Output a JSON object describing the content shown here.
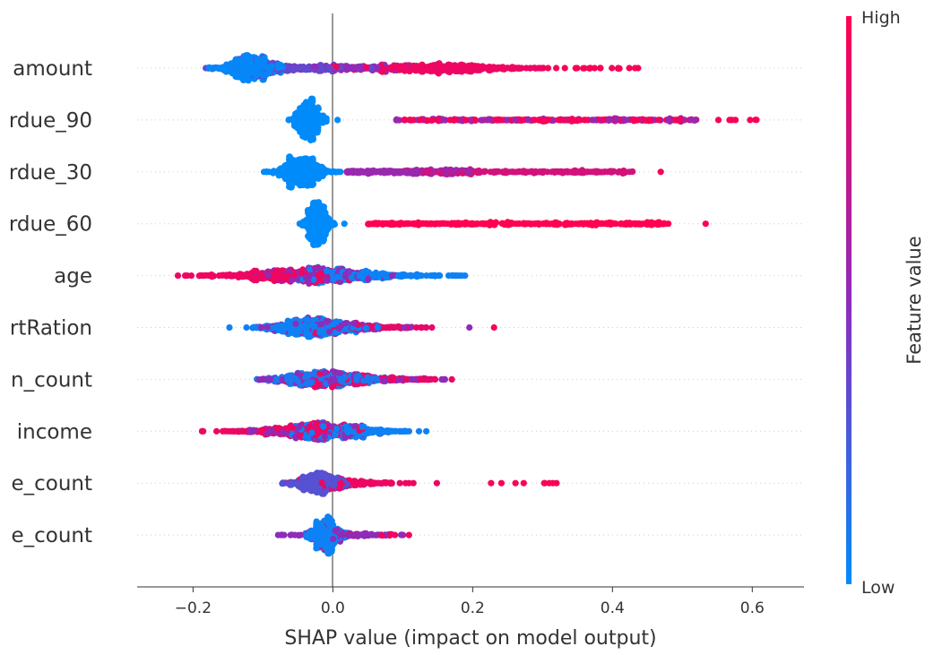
{
  "chart_data": {
    "type": "scatter",
    "subtype": "beeswarm",
    "xlabel": "SHAP value (impact on model output)",
    "xlim": [
      -0.28,
      0.674
    ],
    "xticks": [
      -0.2,
      0.0,
      0.2,
      0.4,
      0.6
    ],
    "xtick_labels": [
      "−0.2",
      "0.0",
      "0.2",
      "0.4",
      "0.6"
    ],
    "grid": false,
    "zero_line": true,
    "colorbar": {
      "label": "Feature value",
      "high_label": "High",
      "low_label": "Low",
      "low_color": "#008bfb",
      "mid_color": "#8e2cb9",
      "high_color": "#ff0052",
      "placement": "right"
    },
    "features": [
      {
        "label": "amount",
        "components": [
          {
            "mean": -0.12,
            "sd": 0.022,
            "lo": -0.23,
            "hi": -0.05,
            "n": 520,
            "value": 0.02
          },
          {
            "mean": -0.06,
            "sd": 0.05,
            "lo": -0.2,
            "hi": 0.06,
            "n": 220,
            "value": 0.35
          },
          {
            "mean": 0.03,
            "sd": 0.05,
            "lo": -0.08,
            "hi": 0.12,
            "n": 120,
            "value": 0.5
          },
          {
            "mean": 0.15,
            "sd": 0.065,
            "lo": 0.0,
            "hi": 0.3,
            "n": 480,
            "value": 0.92
          },
          {
            "mean": null,
            "sd": null,
            "lo": 0.3,
            "hi": 0.44,
            "n": 22,
            "value": 0.97
          }
        ]
      },
      {
        "label": "rdue_90",
        "components": [
          {
            "mean": -0.035,
            "sd": 0.011,
            "lo": -0.1,
            "hi": -0.005,
            "n": 520,
            "value": 0.0
          },
          {
            "mean": null,
            "sd": null,
            "lo": 0.005,
            "hi": 0.015,
            "n": 1,
            "value": 0.0
          },
          {
            "mean": null,
            "sd": null,
            "lo": 0.085,
            "hi": 0.52,
            "n": 160,
            "value": 0.55
          },
          {
            "mean": null,
            "sd": null,
            "lo": 0.1,
            "hi": 0.52,
            "n": 130,
            "value": 0.97
          },
          {
            "mean": null,
            "sd": null,
            "lo": 0.52,
            "hi": 0.63,
            "n": 7,
            "value": 0.97
          }
        ]
      },
      {
        "label": "rdue_30",
        "components": [
          {
            "mean": -0.045,
            "sd": 0.018,
            "lo": -0.105,
            "hi": 0.025,
            "n": 620,
            "value": 0.0
          },
          {
            "mean": null,
            "sd": null,
            "lo": 0.02,
            "hi": 0.2,
            "n": 200,
            "value": 0.55
          },
          {
            "mean": null,
            "sd": null,
            "lo": 0.1,
            "hi": 0.43,
            "n": 220,
            "value": 0.8
          },
          {
            "mean": null,
            "sd": null,
            "lo": 0.465,
            "hi": 0.475,
            "n": 1,
            "value": 0.97
          }
        ]
      },
      {
        "label": "rdue_60",
        "components": [
          {
            "mean": -0.022,
            "sd": 0.009,
            "lo": -0.075,
            "hi": 0.01,
            "n": 520,
            "value": 0.0
          },
          {
            "mean": null,
            "sd": null,
            "lo": 0.015,
            "hi": 0.025,
            "n": 1,
            "value": 0.0
          },
          {
            "mean": null,
            "sd": null,
            "lo": 0.05,
            "hi": 0.48,
            "n": 330,
            "value": 1.0
          },
          {
            "mean": null,
            "sd": null,
            "lo": 0.53,
            "hi": 0.54,
            "n": 1,
            "value": 1.0
          }
        ]
      },
      {
        "label": "age",
        "components": [
          {
            "mean": -0.08,
            "sd": 0.05,
            "lo": -0.24,
            "hi": 0.05,
            "n": 380,
            "value": 0.92
          },
          {
            "mean": -0.02,
            "sd": 0.04,
            "lo": -0.12,
            "hi": 0.1,
            "n": 260,
            "value": 0.5
          },
          {
            "mean": 0.03,
            "sd": 0.06,
            "lo": -0.05,
            "hi": 0.28,
            "n": 320,
            "value": 0.05
          }
        ]
      },
      {
        "label": "rtRation",
        "components": [
          {
            "mean": -0.03,
            "sd": 0.035,
            "lo": -0.2,
            "hi": 0.17,
            "n": 520,
            "value": 0.05
          },
          {
            "mean": 0.0,
            "sd": 0.05,
            "lo": -0.12,
            "hi": 0.2,
            "n": 200,
            "value": 0.5
          },
          {
            "mean": 0.04,
            "sd": 0.05,
            "lo": -0.05,
            "hi": 0.2,
            "n": 90,
            "value": 0.9
          },
          {
            "mean": null,
            "sd": null,
            "lo": 0.23,
            "hi": 0.235,
            "n": 1,
            "value": 0.97
          }
        ]
      },
      {
        "label": "n_count",
        "components": [
          {
            "mean": -0.02,
            "sd": 0.04,
            "lo": -0.11,
            "hi": 0.15,
            "n": 360,
            "value": 0.1
          },
          {
            "mean": 0.0,
            "sd": 0.06,
            "lo": -0.11,
            "hi": 0.27,
            "n": 260,
            "value": 0.5
          },
          {
            "mean": 0.03,
            "sd": 0.06,
            "lo": -0.08,
            "hi": 0.2,
            "n": 180,
            "value": 0.92
          }
        ]
      },
      {
        "label": "income",
        "components": [
          {
            "mean": -0.05,
            "sd": 0.045,
            "lo": -0.2,
            "hi": 0.05,
            "n": 300,
            "value": 0.92
          },
          {
            "mean": -0.02,
            "sd": 0.04,
            "lo": -0.15,
            "hi": 0.1,
            "n": 220,
            "value": 0.5
          },
          {
            "mean": 0.0,
            "sd": 0.05,
            "lo": -0.06,
            "hi": 0.2,
            "n": 340,
            "value": 0.05
          }
        ]
      },
      {
        "label": "e_count",
        "components": [
          {
            "mean": -0.02,
            "sd": 0.02,
            "lo": -0.075,
            "hi": 0.1,
            "n": 420,
            "value": 0.3
          },
          {
            "mean": 0.02,
            "sd": 0.04,
            "lo": -0.07,
            "hi": 0.15,
            "n": 140,
            "value": 0.92
          },
          {
            "mean": null,
            "sd": null,
            "lo": 0.2,
            "hi": 0.35,
            "n": 9,
            "value": 0.97
          }
        ]
      },
      {
        "label": "e_count",
        "components": [
          {
            "mean": -0.01,
            "sd": 0.012,
            "lo": -0.085,
            "hi": 0.15,
            "n": 420,
            "value": 0.05
          },
          {
            "mean": 0.0,
            "sd": 0.04,
            "lo": -0.085,
            "hi": 0.15,
            "n": 110,
            "value": 0.5
          },
          {
            "mean": 0.03,
            "sd": 0.05,
            "lo": -0.085,
            "hi": 0.155,
            "n": 30,
            "value": 0.95
          }
        ]
      }
    ]
  }
}
